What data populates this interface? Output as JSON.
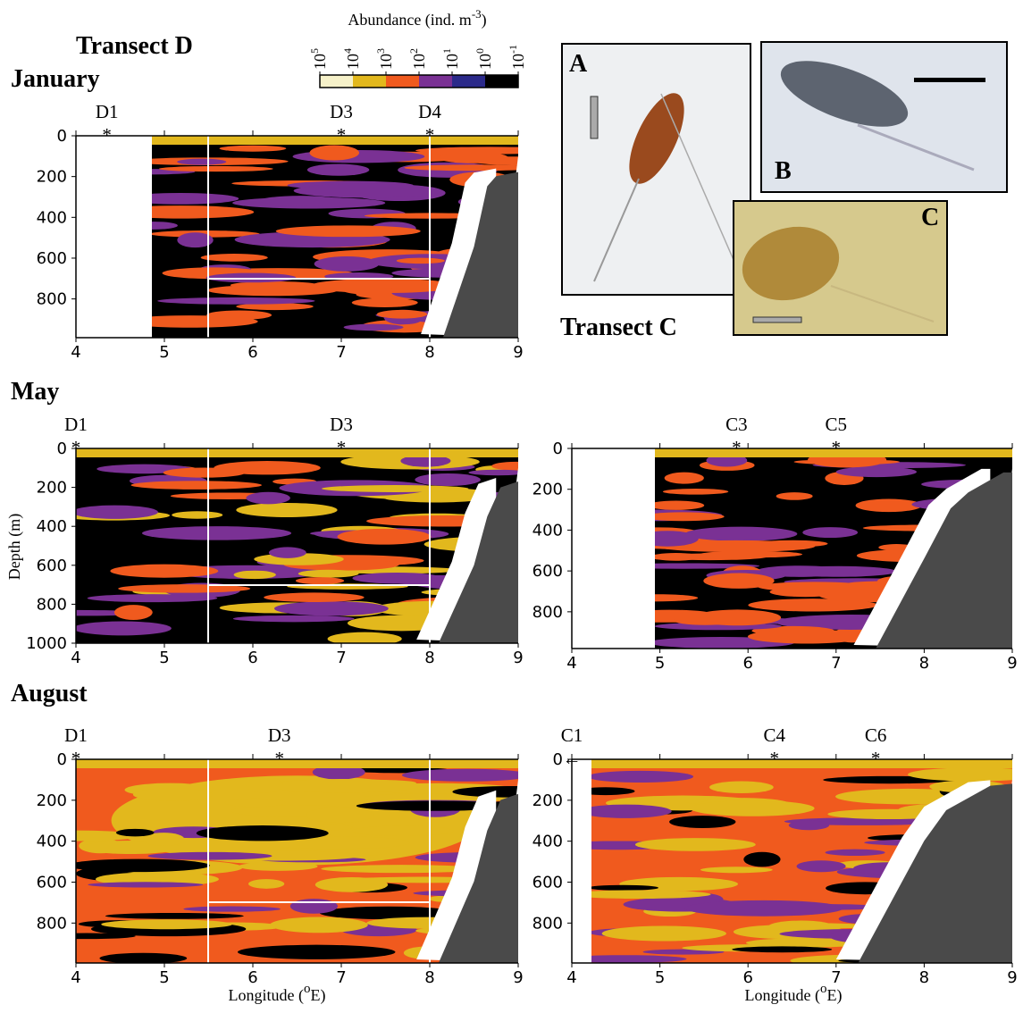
{
  "headings": {
    "transect_d": "Transect D",
    "transect_c": "Transect C"
  },
  "ylabel": "Depth (m)",
  "xlabel": {
    "before": "Longitude (",
    "sup": "o",
    "after": "E)"
  },
  "colorbar": {
    "title": "Abundance (ind. m",
    "title_sup": "-3",
    "title_end": ")",
    "colors": [
      "#f6f1c9",
      "#e2b81d",
      "#f05a1e",
      "#7a3194",
      "#2b2a8a",
      "#000000"
    ],
    "ticks": [
      {
        "value": 100000,
        "label": "10",
        "exp": "5"
      },
      {
        "value": 10000,
        "label": "10",
        "exp": "4"
      },
      {
        "value": 1000,
        "label": "10",
        "exp": "3"
      },
      {
        "value": 100,
        "label": "10",
        "exp": "2"
      },
      {
        "value": 10,
        "label": "10",
        "exp": "1"
      },
      {
        "value": 1,
        "label": "10",
        "exp": "0"
      },
      {
        "value": 0.1,
        "label": "10",
        "exp": "-1"
      }
    ]
  },
  "photos": [
    {
      "label": "A"
    },
    {
      "label": "B"
    },
    {
      "label": "C"
    }
  ],
  "chart_data": [
    {
      "type": "contour",
      "title": "January",
      "xlim": [
        4,
        9
      ],
      "ylim": [
        990,
        0
      ],
      "xticks": [
        4,
        5,
        6,
        7,
        8,
        9
      ],
      "yticks": [
        0,
        200,
        400,
        600,
        800
      ],
      "stations": [
        {
          "name": "D1",
          "symbol": "*",
          "x": 4.35
        },
        {
          "name": "D3",
          "symbol": "*",
          "x": 7.0
        },
        {
          "name": "D4",
          "symbol": "*",
          "x": 8.0
        }
      ]
    },
    {
      "type": "contour",
      "title": "May",
      "xlim": [
        4,
        9
      ],
      "ylim": [
        1000,
        0
      ],
      "xticks": [
        4,
        5,
        6,
        7,
        8,
        9
      ],
      "yticks": [
        0,
        200,
        400,
        600,
        800,
        1000
      ],
      "stations": [
        {
          "name": "D1",
          "symbol": "*",
          "x": 4.0
        },
        {
          "name": "D3",
          "symbol": "*",
          "x": 7.0
        }
      ]
    },
    {
      "type": "contour",
      "xlim": [
        4,
        9
      ],
      "ylim": [
        980,
        0
      ],
      "xticks": [
        4,
        5,
        6,
        7,
        8,
        9
      ],
      "yticks": [
        0,
        200,
        400,
        600,
        800
      ],
      "stations": [
        {
          "name": "C3",
          "symbol": "*",
          "x": 5.87
        },
        {
          "name": "C5",
          "symbol": "*",
          "x": 7.0
        }
      ]
    },
    {
      "type": "contour",
      "title": "August",
      "xlim": [
        4,
        9
      ],
      "ylim": [
        995,
        0
      ],
      "xticks": [
        4,
        5,
        6,
        7,
        8,
        9
      ],
      "yticks": [
        0,
        200,
        400,
        600,
        800
      ],
      "stations": [
        {
          "name": "D1",
          "symbol": "*",
          "x": 4.0
        },
        {
          "name": "D3",
          "symbol": "*",
          "x": 6.3
        }
      ]
    },
    {
      "type": "contour",
      "xlim": [
        4,
        9
      ],
      "ylim": [
        995,
        0
      ],
      "xticks": [
        4,
        5,
        6,
        7,
        8,
        9
      ],
      "yticks": [
        0,
        200,
        400,
        600,
        800
      ],
      "stations": [
        {
          "name": "C1",
          "symbol": "←"
        },
        {
          "name": "C4",
          "symbol": "*",
          "x": 6.3
        },
        {
          "name": "C6",
          "symbol": "*",
          "x": 7.45
        }
      ]
    }
  ]
}
